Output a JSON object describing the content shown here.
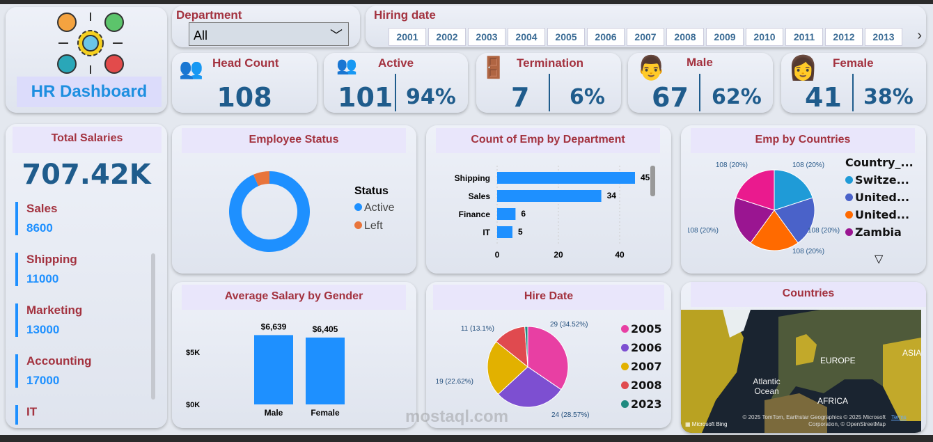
{
  "app": {
    "title": "HR Dashboard",
    "logo_icon": "hr-network-gear-icon"
  },
  "filters": {
    "department_label": "Department",
    "department_value": "All",
    "hiring_label": "Hiring date",
    "years": [
      "2001",
      "2002",
      "2003",
      "2004",
      "2005",
      "2006",
      "2007",
      "2008",
      "2009",
      "2010",
      "2011",
      "2012",
      "2013"
    ]
  },
  "kpis": {
    "head_count": {
      "label": "Head Count",
      "value": "108",
      "icon": "group-icon"
    },
    "active": {
      "label": "Active",
      "value": "101",
      "pct": "94%",
      "icon": "active-users-icon"
    },
    "termination": {
      "label": "Termination",
      "value": "7",
      "pct": "6%",
      "icon": "termination-icon"
    },
    "male": {
      "label": "Male",
      "value": "67",
      "pct": "62%",
      "icon": "male-icon"
    },
    "female": {
      "label": "Female",
      "value": "41",
      "pct": "38%",
      "icon": "female-icon"
    }
  },
  "salaries": {
    "title": "Total Salaries",
    "total": "707.42K",
    "items": [
      {
        "name": "Sales",
        "value": "8600"
      },
      {
        "name": "Shipping",
        "value": "11000"
      },
      {
        "name": "Marketing",
        "value": "13000"
      },
      {
        "name": "Accounting",
        "value": "17000"
      },
      {
        "name": "IT",
        "value": ""
      }
    ]
  },
  "map": {
    "title": "Countries",
    "labels": {
      "europe": "EUROPE",
      "asia": "ASIA",
      "ocean": "Atlantic Ocean",
      "africa": "AFRICA"
    },
    "credit": "© 2025 TomTom, Earthstar Geographics © 2025 Microsoft Corporation, © OpenStreetMap",
    "terms": "Terms",
    "brand": "Microsoft Bing"
  },
  "watermark": "mostaql.com",
  "chart_data": [
    {
      "id": "status",
      "type": "pie",
      "title": "Employee Status",
      "legend_title": "Status",
      "categories": [
        "Active",
        "Left"
      ],
      "values": [
        101,
        7
      ],
      "colors": [
        "#1e90ff",
        "#e8743b"
      ],
      "donut": true
    },
    {
      "id": "dept",
      "type": "bar",
      "orientation": "horizontal",
      "title": "Count of Emp by Department",
      "categories": [
        "Shipping",
        "Sales",
        "Finance",
        "IT"
      ],
      "values": [
        45,
        34,
        6,
        5
      ],
      "xticks": [
        "0",
        "20",
        "40"
      ],
      "xlim": [
        0,
        50
      ],
      "color": "#1e90ff"
    },
    {
      "id": "countries",
      "type": "pie",
      "title": "Emp by Countries",
      "legend_title": "Country_...",
      "categories": [
        "Switze...",
        "United...",
        "United...",
        "Zambia",
        ""
      ],
      "values": [
        108,
        108,
        108,
        108,
        108
      ],
      "labels": [
        "108 (20%)",
        "108 (20%)",
        "108 (20%)",
        "108 (20%)",
        "108 (20%)"
      ],
      "colors": [
        "#1f9bd7",
        "#4a62c9",
        "#ff6a00",
        "#9a1591",
        "#ea1a8e"
      ]
    },
    {
      "id": "avg",
      "type": "bar",
      "title": "Average Salary by Gender",
      "categories": [
        "Male",
        "Female"
      ],
      "values": [
        6639,
        6405
      ],
      "labels": [
        "$6,639",
        "$6,405"
      ],
      "yticks": [
        "$0K",
        "$5K"
      ],
      "ylim": [
        0,
        8000
      ],
      "color": "#1e90ff"
    },
    {
      "id": "hire",
      "type": "pie",
      "title": "Hire Date",
      "categories": [
        "2005",
        "2006",
        "2007",
        "2008",
        "2023"
      ],
      "values": [
        29,
        24,
        19,
        11,
        1
      ],
      "labels": [
        "29 (34.52%)",
        "24 (28.57%)",
        "19 (22.62%)",
        "11 (13.1%)",
        ""
      ],
      "colors": [
        "#e83fa3",
        "#7d4fd1",
        "#e2b100",
        "#e04a4f",
        "#1f8a80"
      ]
    }
  ]
}
